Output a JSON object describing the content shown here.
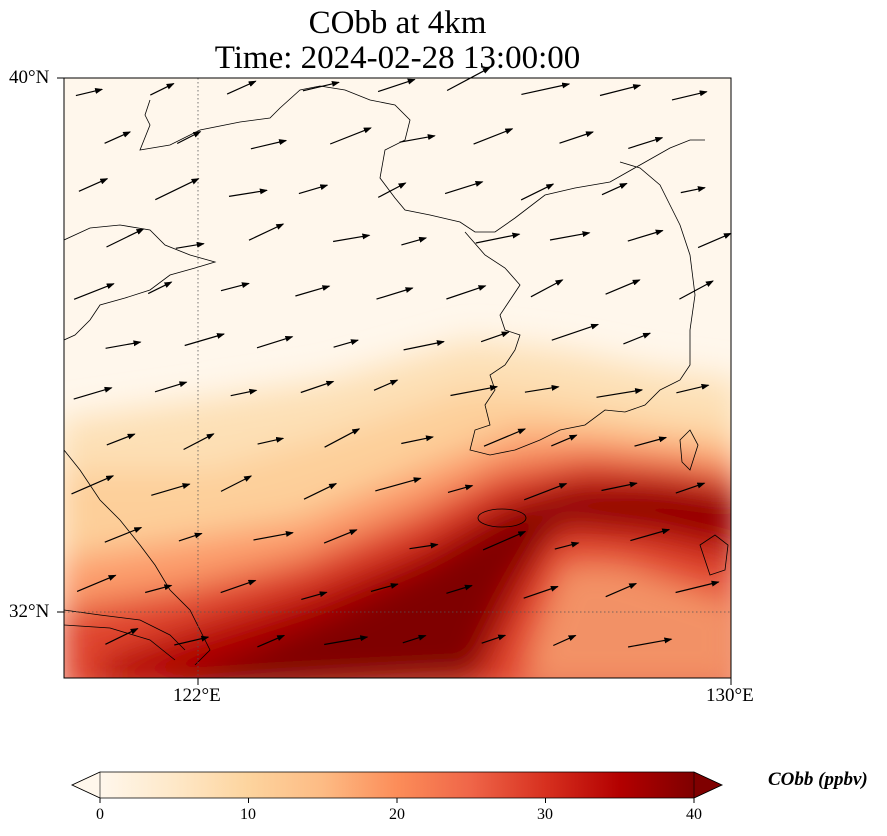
{
  "title": {
    "line1": "CObb at 4km",
    "line2": "Time: 2024-02-28 13:00:00"
  },
  "axes": {
    "lat_labels": [
      "40°N",
      "32°N"
    ],
    "lon_labels": [
      "122°E",
      "130°E"
    ],
    "lat_range": [
      31,
      40
    ],
    "lon_range": [
      120,
      130
    ],
    "gridlines": {
      "lat": [
        32
      ],
      "lon": [
        122
      ],
      "style": "dotted"
    }
  },
  "colorbar": {
    "label": "CObb (ppbv)",
    "ticks": [
      "0",
      "10",
      "20",
      "30",
      "40"
    ],
    "range": [
      0,
      40
    ],
    "extend": "both",
    "colormap": "OrRd",
    "colors": [
      "#fff7ec",
      "#fee8c8",
      "#fdd49e",
      "#fdbb84",
      "#fc8d59",
      "#ef6548",
      "#d7301f",
      "#b30000",
      "#7f0000"
    ]
  },
  "chart_data": {
    "type": "heatmap",
    "variable": "CObb",
    "units": "ppbv",
    "level": "4km",
    "time": "2024-02-28 13:00:00",
    "plume": [
      {
        "lon": 120.0,
        "lat": 31.0,
        "value": 24
      },
      {
        "lon": 121.0,
        "lat": 31.0,
        "value": 33
      },
      {
        "lon": 122.5,
        "lat": 31.1,
        "value": 40
      },
      {
        "lon": 124.0,
        "lat": 31.1,
        "value": 40
      },
      {
        "lon": 125.5,
        "lat": 31.3,
        "value": 37
      },
      {
        "lon": 123.5,
        "lat": 32.2,
        "value": 40
      },
      {
        "lon": 125.0,
        "lat": 32.8,
        "value": 40
      },
      {
        "lon": 126.4,
        "lat": 33.4,
        "value": 40
      },
      {
        "lon": 128.0,
        "lat": 33.9,
        "value": 38
      },
      {
        "lon": 129.6,
        "lat": 33.9,
        "value": 36
      },
      {
        "lon": 127.3,
        "lat": 32.6,
        "value": 28
      },
      {
        "lon": 122.0,
        "lat": 33.1,
        "value": 14
      },
      {
        "lon": 125.5,
        "lat": 34.8,
        "value": 16
      },
      {
        "lon": 127.5,
        "lat": 35.2,
        "value": 10
      },
      {
        "lon": 121.5,
        "lat": 35.5,
        "value": 6
      },
      {
        "lon": 124.0,
        "lat": 38.5,
        "value": 1
      }
    ],
    "wind_vectors": "eastward to east-northeastward flow across the domain"
  }
}
